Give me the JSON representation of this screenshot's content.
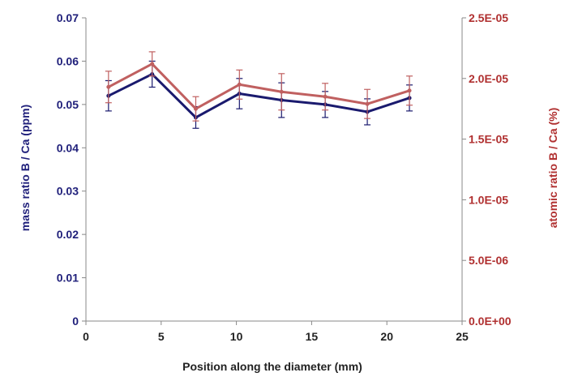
{
  "colors": {
    "left_axis": "#1f1f7a",
    "right_axis": "#b03030",
    "series_mass": "#1a1a6e",
    "series_atomic": "#c06060",
    "axis_line": "#888888",
    "x_text": "#222222"
  },
  "chart_data": {
    "type": "line",
    "xlabel": "Position along the diameter (mm)",
    "ylabel": "mass ratio B / Ca (ppm)",
    "y2label": "atomic ratio B / Ca (%)",
    "xlim": [
      0,
      25
    ],
    "ylim": [
      0,
      0.07
    ],
    "y2lim": [
      0,
      2.5e-05
    ],
    "grid": false,
    "x_ticks": [
      0,
      5,
      10,
      15,
      20,
      25
    ],
    "x_tick_labels": [
      "0",
      "5",
      "10",
      "15",
      "20",
      "25"
    ],
    "y_ticks": [
      0,
      0.01,
      0.02,
      0.03,
      0.04,
      0.05,
      0.06,
      0.07
    ],
    "y_tick_labels": [
      "0",
      "0.01",
      "0.02",
      "0.03",
      "0.04",
      "0.05",
      "0.06",
      "0.07"
    ],
    "y2_ticks": [
      0,
      5e-06,
      1e-05,
      1.5e-05,
      2e-05,
      2.5e-05
    ],
    "y2_tick_labels": [
      "0.0E+00",
      "5.0E-06",
      "1.0E-05",
      "1.5E-05",
      "2.0E-05",
      "2.5E-05"
    ],
    "x": [
      1.5,
      4.4,
      7.3,
      10.2,
      13.0,
      15.9,
      18.7,
      21.5
    ],
    "series": [
      {
        "axis": "left",
        "color": "#1a1a6e",
        "values": [
          0.052,
          0.057,
          0.047,
          0.0525,
          0.051,
          0.05,
          0.0483,
          0.0515
        ],
        "errors": [
          0.0035,
          0.003,
          0.0025,
          0.0035,
          0.004,
          0.003,
          0.003,
          0.003
        ]
      },
      {
        "axis": "right",
        "color": "#c06060",
        "values": [
          1.93e-05,
          2.12e-05,
          1.75e-05,
          1.95e-05,
          1.89e-05,
          1.85e-05,
          1.79e-05,
          1.9e-05
        ],
        "errors": [
          1.3e-06,
          1e-06,
          1e-06,
          1.2e-06,
          1.5e-06,
          1.1e-06,
          1.2e-06,
          1.2e-06
        ]
      }
    ]
  }
}
